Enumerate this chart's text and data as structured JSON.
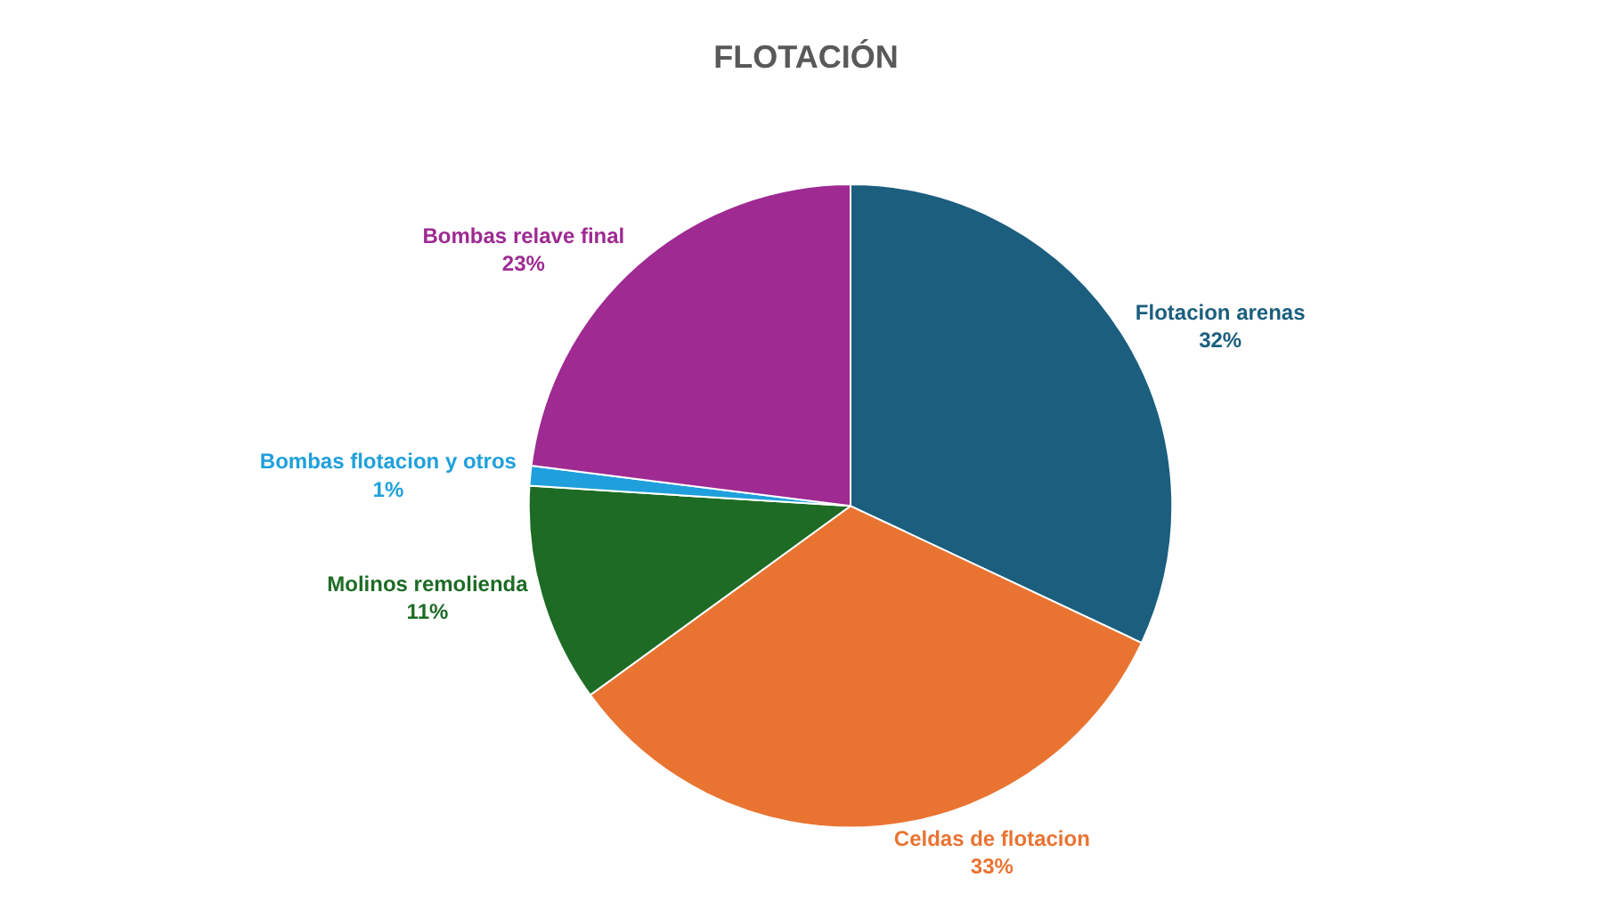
{
  "chart_data": {
    "type": "pie",
    "title": "FLOTACIÓN",
    "categories": [
      "Flotacion arenas",
      "Celdas de flotacion",
      "Molinos remolienda",
      "Bombas flotacion y otros",
      "Bombas relave final"
    ],
    "values": [
      32,
      33,
      11,
      1,
      23
    ],
    "value_labels": [
      "32%",
      "33%",
      "11%",
      "1%",
      "23%"
    ],
    "colors": [
      "#1b5e7e",
      "#e97432",
      "#1d6b25",
      "#1fa0dc",
      "#9e2a92"
    ],
    "legend": false
  }
}
